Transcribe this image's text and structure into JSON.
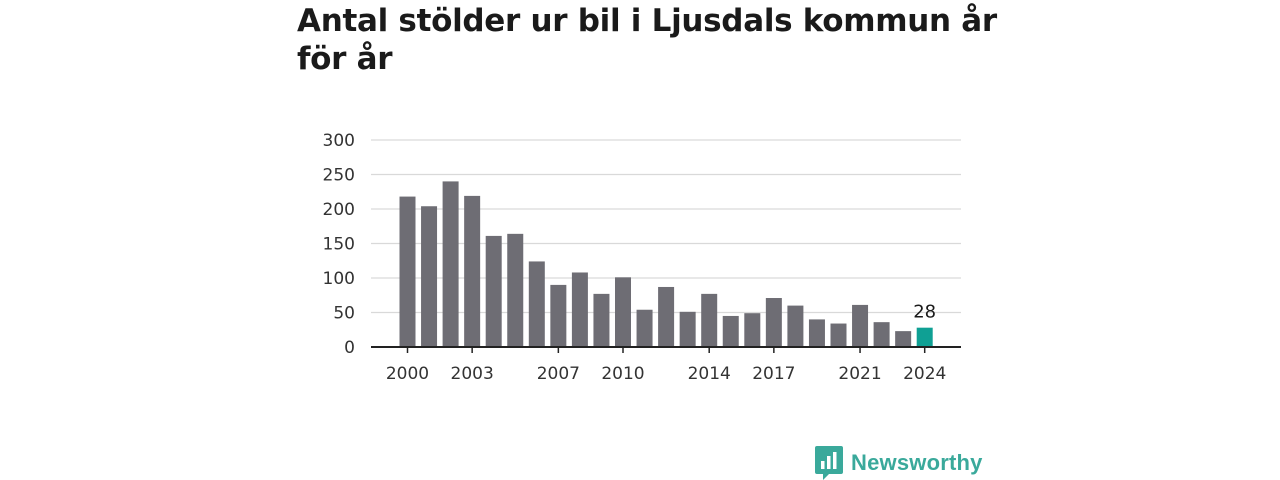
{
  "title": "Antal stölder ur bil i Ljusdals kommun år för år",
  "brand": {
    "name": "Newsworthy",
    "color": "#3aa99b"
  },
  "colors": {
    "bar": "#6e6d74",
    "highlight": "#0fa094",
    "grid": "#d9d9d9",
    "axis": "#222222"
  },
  "chart_data": {
    "type": "bar",
    "categories": [
      "2000",
      "2001",
      "2002",
      "2003",
      "2004",
      "2005",
      "2006",
      "2007",
      "2008",
      "2009",
      "2010",
      "2011",
      "2012",
      "2013",
      "2014",
      "2015",
      "2016",
      "2017",
      "2018",
      "2019",
      "2020",
      "2021",
      "2022",
      "2023",
      "2024"
    ],
    "values": [
      218,
      204,
      240,
      219,
      161,
      164,
      124,
      90,
      108,
      77,
      101,
      54,
      87,
      51,
      77,
      45,
      49,
      71,
      60,
      40,
      34,
      61,
      36,
      23,
      28
    ],
    "highlight_index": 24,
    "data_labels": [
      {
        "index": 24,
        "text": "28"
      }
    ],
    "x_tick_labels": [
      "2000",
      "2003",
      "2007",
      "2010",
      "2014",
      "2017",
      "2021",
      "2024"
    ],
    "y_ticks": [
      0,
      50,
      100,
      150,
      200,
      250,
      300
    ],
    "ylim": [
      0,
      300
    ],
    "xlabel": "",
    "ylabel": "",
    "grid": true,
    "legend": "none"
  }
}
